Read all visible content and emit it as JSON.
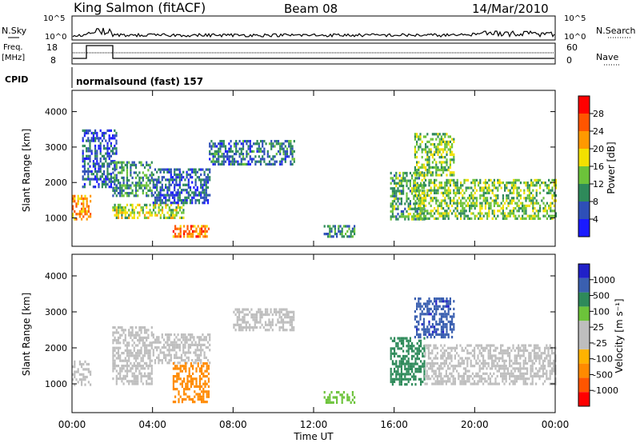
{
  "header": {
    "station": "King Salmon (fitACF)",
    "beam": "Beam 08",
    "date": "14/Mar/2010"
  },
  "top_panel": {
    "left_labels": {
      "nsky": "N.Sky",
      "freq": "Freq.",
      "freq_unit": "[MHz]",
      "cpid": "CPID"
    },
    "right_labels": {
      "nsearch": "N.Search",
      "nave": "Nave"
    },
    "noise_ticks": [
      "10^5",
      "10^0"
    ],
    "freq_ticks": [
      "18",
      "8"
    ],
    "nave_ticks": [
      "60",
      "0"
    ],
    "cpid_text": "normalsound (fast) 157"
  },
  "colors": {
    "power_scale": [
      "#1a1aff",
      "#2e4fb8",
      "#2e8a5a",
      "#6cc33a",
      "#f2e000",
      "#ff9900",
      "#ff5500",
      "#ff0000"
    ],
    "velocity_scale": [
      "#2020c8",
      "#3a5fb0",
      "#2e8a5a",
      "#6cc33a",
      "#bebebe",
      "#bebebe",
      "#ffb300",
      "#ff8a00",
      "#ff5500",
      "#ff0000"
    ]
  },
  "chart_data": [
    {
      "type": "heatmap",
      "name": "power",
      "ylabel": "Slant Range [km]",
      "y_ticks": [
        "1000",
        "2000",
        "3000",
        "4000"
      ],
      "ylim": [
        200,
        4600
      ],
      "colorbar_label": "Power [dB]",
      "colorbar_ticks": [
        "4",
        "8",
        "12",
        "16",
        "20",
        "24",
        "28"
      ],
      "regions": [
        {
          "t": [
            0.0,
            0.9
          ],
          "r": [
            950,
            1650
          ],
          "v": 22
        },
        {
          "t": [
            0.5,
            2.2
          ],
          "r": [
            1900,
            3500
          ],
          "v": 6
        },
        {
          "t": [
            2.0,
            5.5
          ],
          "r": [
            1000,
            1400
          ],
          "v": 16
        },
        {
          "t": [
            2.0,
            4.0
          ],
          "r": [
            1600,
            2600
          ],
          "v": 10
        },
        {
          "t": [
            4.0,
            6.8
          ],
          "r": [
            1400,
            2400
          ],
          "v": 7
        },
        {
          "t": [
            5.0,
            6.8
          ],
          "r": [
            500,
            800
          ],
          "v": 24
        },
        {
          "t": [
            6.8,
            11.0
          ],
          "r": [
            2500,
            3200
          ],
          "v": 8
        },
        {
          "t": [
            12.5,
            14.0
          ],
          "r": [
            500,
            800
          ],
          "v": 10
        },
        {
          "t": [
            15.8,
            17.5
          ],
          "r": [
            1000,
            2300
          ],
          "v": 12
        },
        {
          "t": [
            17.0,
            19.0
          ],
          "r": [
            2200,
            3400
          ],
          "v": 14
        },
        {
          "t": [
            17.0,
            24.0
          ],
          "r": [
            1000,
            2100
          ],
          "v": 14
        }
      ]
    },
    {
      "type": "heatmap",
      "name": "velocity",
      "ylabel": "Slant Range [km]",
      "y_ticks": [
        "1000",
        "2000",
        "3000",
        "4000"
      ],
      "ylim": [
        200,
        4600
      ],
      "colorbar_label": "Velocity [m s⁻¹]",
      "colorbar_ticks": [
        "1000",
        "500",
        "100",
        "25",
        "-25",
        "-100",
        "-500",
        "-1000"
      ],
      "regions": [
        {
          "t": [
            0.0,
            0.9
          ],
          "r": [
            950,
            1650
          ],
          "v": 0
        },
        {
          "t": [
            2.0,
            4.0
          ],
          "r": [
            1000,
            2600
          ],
          "v": 0
        },
        {
          "t": [
            4.0,
            6.8
          ],
          "r": [
            1600,
            2400
          ],
          "v": 0
        },
        {
          "t": [
            5.0,
            6.8
          ],
          "r": [
            500,
            1600
          ],
          "v": -200
        },
        {
          "t": [
            8.0,
            11.0
          ],
          "r": [
            2500,
            3100
          ],
          "v": 0
        },
        {
          "t": [
            12.5,
            14.0
          ],
          "r": [
            500,
            800
          ],
          "v": 60
        },
        {
          "t": [
            15.8,
            17.5
          ],
          "r": [
            1000,
            2300
          ],
          "v": 200
        },
        {
          "t": [
            17.0,
            19.0
          ],
          "r": [
            2300,
            3400
          ],
          "v": 800
        },
        {
          "t": [
            17.5,
            24.0
          ],
          "r": [
            1000,
            2100
          ],
          "v": 0
        }
      ],
      "x_ticks": [
        "00:00",
        "04:00",
        "08:00",
        "12:00",
        "16:00",
        "20:00",
        "00:00"
      ],
      "xlabel": "Time UT"
    }
  ]
}
